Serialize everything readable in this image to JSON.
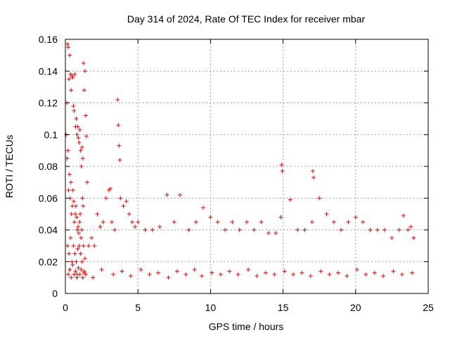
{
  "chart_data": {
    "type": "scatter",
    "title": "Day 314 of 2024, Rate Of TEC Index for receiver mbar",
    "xlabel": "GPS time / hours",
    "ylabel": "ROTI / TECUs",
    "xlim": [
      0,
      25
    ],
    "ylim": [
      0,
      0.16
    ],
    "x_ticks": [
      "0",
      "5",
      "10",
      "15",
      "20",
      "25"
    ],
    "y_ticks": [
      "0",
      "0.02",
      "0.04",
      "0.06",
      "0.08",
      "0.1",
      "0.12",
      "0.14",
      "0.16"
    ],
    "grid": true,
    "marker": "plus",
    "color": "#ff0000",
    "series": [
      {
        "x": [
          0.05,
          0.1,
          0.15,
          0.2,
          0.25,
          0.3,
          0.35,
          0.4,
          0.45,
          0.5,
          0.55,
          0.6,
          0.65,
          0.7,
          0.75,
          0.8,
          0.85,
          0.9,
          0.95,
          1.0,
          1.05,
          1.1,
          1.15,
          1.2,
          1.25,
          1.3,
          1.35,
          1.4,
          1.45,
          1.5,
          0.12,
          0.18,
          0.22,
          0.28,
          0.33,
          0.38,
          0.42,
          0.48,
          0.52,
          0.58,
          0.62,
          0.68,
          0.72,
          0.78,
          0.82,
          0.88,
          0.92,
          0.98,
          1.02,
          1.08,
          1.12,
          1.18,
          1.22,
          0.15,
          0.25,
          0.35,
          0.45,
          0.55,
          0.65,
          0.75,
          0.85,
          0.95,
          1.05,
          1.15,
          1.25,
          1.35,
          0.2,
          0.3,
          0.4,
          0.5,
          0.6,
          0.7,
          0.8,
          0.9,
          1.0,
          1.1,
          1.2,
          1.3,
          1.4,
          1.6,
          1.8,
          2.0,
          2.2,
          2.4,
          2.6,
          2.8,
          3.0,
          3.1,
          3.2,
          3.4,
          3.6,
          3.65,
          3.7,
          3.75,
          3.8,
          4.0,
          4.2,
          4.4,
          4.6,
          4.8,
          5.0,
          5.5,
          6.0,
          6.5,
          7.0,
          7.5,
          7.9,
          8.5,
          9.0,
          9.5,
          10.0,
          10.5,
          11.0,
          11.5,
          12.0,
          12.5,
          13.0,
          13.5,
          14.0,
          14.5,
          14.85,
          14.9,
          14.95,
          15.5,
          16.0,
          16.5,
          17.0,
          17.05,
          17.1,
          17.5,
          18.0,
          18.5,
          19.0,
          19.5,
          20.0,
          20.5,
          21.0,
          21.5,
          22.0,
          22.5,
          23.0,
          23.3,
          23.6,
          23.8,
          24.0,
          0.3,
          0.8,
          1.3,
          1.9,
          2.5,
          3.3,
          3.9,
          4.5,
          5.2,
          5.8,
          6.4,
          7.1,
          7.7,
          8.3,
          8.9,
          9.4,
          10.1,
          10.7,
          11.3,
          11.9,
          12.6,
          13.2,
          13.8,
          14.4,
          15.1,
          15.7,
          16.3,
          16.9,
          17.6,
          18.2,
          18.8,
          19.4,
          20.1,
          20.7,
          21.3,
          21.9,
          22.6,
          23.2,
          23.9
        ],
        "y": [
          0.1,
          0.12,
          0.157,
          0.155,
          0.135,
          0.15,
          0.138,
          0.128,
          0.137,
          0.136,
          0.118,
          0.115,
          0.138,
          0.105,
          0.11,
          0.1,
          0.105,
          0.098,
          0.095,
          0.103,
          0.09,
          0.08,
          0.092,
          0.085,
          0.145,
          0.128,
          0.14,
          0.112,
          0.099,
          0.07,
          0.085,
          0.09,
          0.065,
          0.075,
          0.06,
          0.07,
          0.05,
          0.055,
          0.065,
          0.058,
          0.045,
          0.05,
          0.055,
          0.048,
          0.04,
          0.042,
          0.038,
          0.045,
          0.05,
          0.035,
          0.04,
          0.06,
          0.055,
          0.03,
          0.025,
          0.035,
          0.02,
          0.03,
          0.025,
          0.02,
          0.028,
          0.03,
          0.025,
          0.02,
          0.03,
          0.022,
          0.012,
          0.015,
          0.01,
          0.018,
          0.012,
          0.014,
          0.01,
          0.016,
          0.012,
          0.015,
          0.01,
          0.013,
          0.012,
          0.03,
          0.035,
          0.03,
          0.05,
          0.042,
          0.045,
          0.06,
          0.065,
          0.066,
          0.045,
          0.04,
          0.122,
          0.106,
          0.093,
          0.084,
          0.06,
          0.055,
          0.058,
          0.05,
          0.045,
          0.042,
          0.045,
          0.04,
          0.04,
          0.042,
          0.062,
          0.045,
          0.062,
          0.04,
          0.045,
          0.054,
          0.048,
          0.045,
          0.04,
          0.045,
          0.04,
          0.045,
          0.04,
          0.045,
          0.038,
          0.038,
          0.048,
          0.081,
          0.077,
          0.059,
          0.04,
          0.04,
          0.045,
          0.077,
          0.073,
          0.06,
          0.05,
          0.045,
          0.04,
          0.045,
          0.048,
          0.045,
          0.04,
          0.04,
          0.04,
          0.035,
          0.04,
          0.049,
          0.04,
          0.042,
          0.035,
          0.015,
          0.012,
          0.014,
          0.01,
          0.015,
          0.012,
          0.014,
          0.011,
          0.015,
          0.012,
          0.013,
          0.01,
          0.014,
          0.012,
          0.015,
          0.011,
          0.013,
          0.012,
          0.014,
          0.012,
          0.015,
          0.011,
          0.013,
          0.012,
          0.014,
          0.012,
          0.013,
          0.011,
          0.014,
          0.012,
          0.013,
          0.011,
          0.015,
          0.012,
          0.013,
          0.011,
          0.014,
          0.012,
          0.013
        ]
      }
    ]
  }
}
